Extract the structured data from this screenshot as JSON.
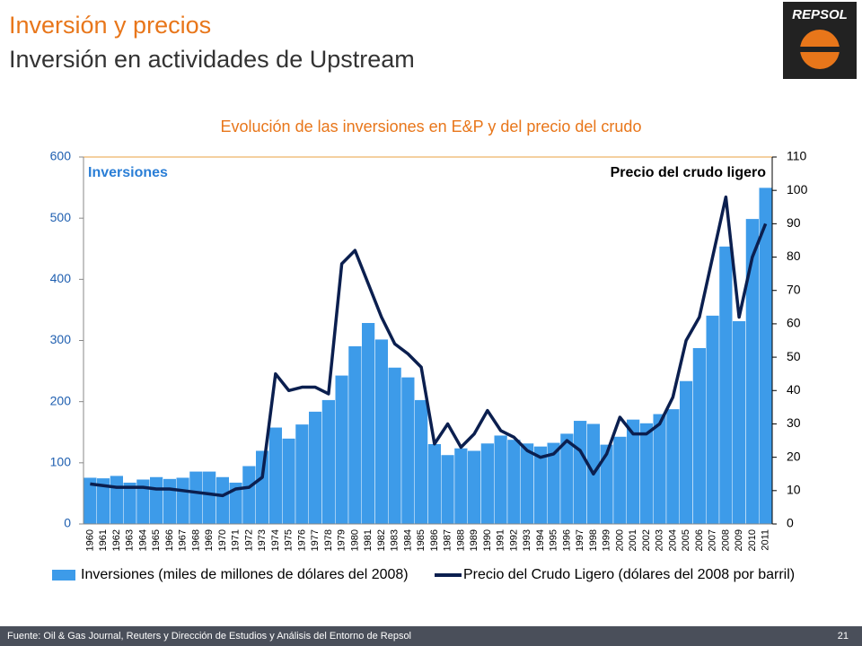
{
  "header": {
    "title": "Inversión y precios",
    "subtitle": "Inversión en actividades de Upstream",
    "logo": "REPSOL"
  },
  "chart_data": {
    "type": "bar_line",
    "title": "Evolución de las inversiones en E&P y del precio del crudo",
    "y_label": "Inversiones",
    "y2_label": "Precio del crudo ligero",
    "categories": [
      "1960",
      "1961",
      "1962",
      "1963",
      "1964",
      "1965",
      "1966",
      "1967",
      "1968",
      "1969",
      "1970",
      "1971",
      "1972",
      "1973",
      "1974",
      "1975",
      "1976",
      "1977",
      "1978",
      "1979",
      "1980",
      "1981",
      "1982",
      "1983",
      "1984",
      "1985",
      "1986",
      "1987",
      "1988",
      "1989",
      "1990",
      "1991",
      "1992",
      "1993",
      "1994",
      "1995",
      "1996",
      "1997",
      "1998",
      "1999",
      "2000",
      "2001",
      "2002",
      "2003",
      "2004",
      "2005",
      "2006",
      "2007",
      "2008",
      "2009",
      "2010",
      "2011"
    ],
    "series": [
      {
        "name": "Inversiones (miles de millones de dólares del 2008)",
        "type": "bar",
        "color": "#3d9be9",
        "values": [
          76,
          75,
          79,
          68,
          73,
          77,
          74,
          76,
          86,
          86,
          77,
          68,
          95,
          120,
          158,
          140,
          163,
          184,
          203,
          243,
          291,
          329,
          302,
          256,
          240,
          203,
          131,
          113,
          124,
          120,
          132,
          145,
          138,
          132,
          127,
          133,
          148,
          169,
          164,
          130,
          143,
          171,
          165,
          180,
          188,
          234,
          288,
          341,
          454,
          332,
          499,
          550
        ]
      },
      {
        "name": "Precio del Crudo Ligero (dólares del 2008 por barril)",
        "type": "line",
        "color": "#0b1f4f",
        "axis": "y2",
        "values": [
          12,
          11.5,
          11,
          11,
          11,
          10.5,
          10.5,
          10,
          9.5,
          9,
          8.5,
          10.5,
          11,
          14,
          45,
          40,
          41,
          41,
          39,
          78,
          82,
          72,
          62,
          54,
          51,
          47,
          24,
          30,
          23,
          27,
          34,
          28,
          26,
          22,
          20,
          21,
          25,
          22,
          15,
          21,
          32,
          27,
          27,
          30,
          38,
          55,
          62,
          80,
          98,
          62,
          80,
          90
        ]
      }
    ],
    "ylim": [
      0,
      600
    ],
    "yticks": [
      0,
      100,
      200,
      300,
      400,
      500,
      600
    ],
    "y2lim": [
      0,
      110
    ],
    "y2ticks": [
      0,
      10,
      20,
      30,
      40,
      50,
      60,
      70,
      80,
      90,
      100,
      110
    ]
  },
  "footer": {
    "source": "Fuente: Oil & Gas Journal, Reuters y Dirección de Estudios y Análisis del Entorno de Repsol",
    "page": "21"
  }
}
